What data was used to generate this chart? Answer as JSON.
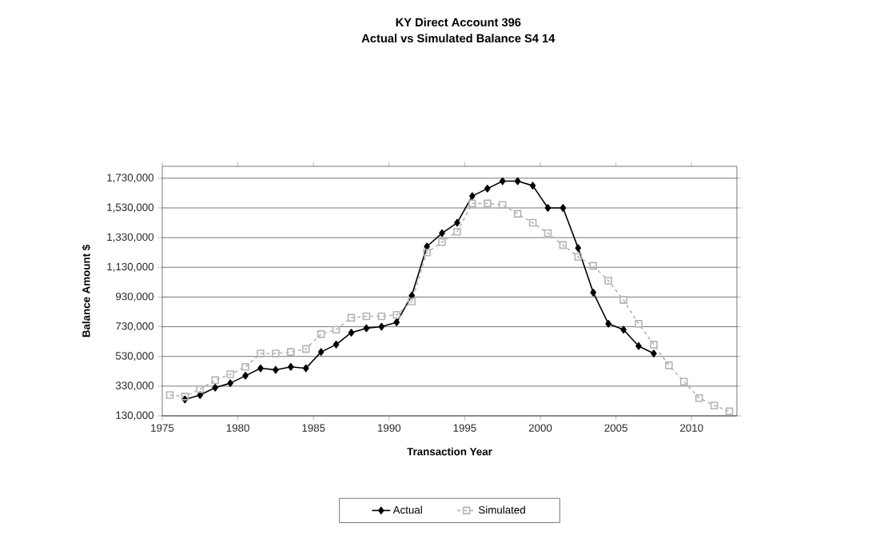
{
  "chart_data": {
    "type": "line",
    "title": "KY Direct Account 396",
    "subtitle": "Actual vs Simulated Balance S4 14",
    "xlabel": "Transaction Year",
    "ylabel": "Balance Amount $",
    "xlim": [
      1975,
      2013
    ],
    "xticks": [
      1975,
      1980,
      1985,
      1990,
      1995,
      2000,
      2005,
      2010
    ],
    "ylim": [
      130000,
      1810000
    ],
    "yticks": [
      {
        "value": 130000,
        "label": "130,000"
      },
      {
        "value": 330000,
        "label": "330,000"
      },
      {
        "value": 530000,
        "label": "530,000"
      },
      {
        "value": 730000,
        "label": "730,000"
      },
      {
        "value": 930000,
        "label": "930,000"
      },
      {
        "value": 1130000,
        "label": "1,130,000"
      },
      {
        "value": 1330000,
        "label": "1,330,000"
      },
      {
        "value": 1530000,
        "label": "1,530,000"
      },
      {
        "value": 1730000,
        "label": "1,730,000"
      }
    ],
    "grid": "y",
    "legend": "bottom",
    "series": [
      {
        "name": "Actual",
        "color": "#000000",
        "marker": "diamond",
        "line_style": "solid",
        "x": [
          1976.5,
          1977.5,
          1978.5,
          1979.5,
          1980.5,
          1981.5,
          1982.5,
          1983.5,
          1984.5,
          1985.5,
          1986.5,
          1987.5,
          1988.5,
          1989.5,
          1990.5,
          1991.5,
          1992.5,
          1993.5,
          1994.5,
          1995.5,
          1996.5,
          1997.5,
          1998.5,
          1999.5,
          2000.5,
          2001.5,
          2002.5,
          2003.5,
          2004.5,
          2005.5,
          2006.5,
          2007.5
        ],
        "values": [
          240000,
          270000,
          320000,
          350000,
          400000,
          450000,
          440000,
          460000,
          450000,
          560000,
          610000,
          690000,
          720000,
          730000,
          760000,
          940000,
          1270000,
          1360000,
          1430000,
          1610000,
          1660000,
          1710000,
          1710000,
          1680000,
          1530000,
          1530000,
          1260000,
          960000,
          750000,
          710000,
          600000,
          550000
        ]
      },
      {
        "name": "Simulated",
        "color": "#b4b4b4",
        "marker": "square",
        "line_style": "dashed",
        "x": [
          1975.5,
          1976.5,
          1977.5,
          1978.5,
          1979.5,
          1980.5,
          1981.5,
          1982.5,
          1983.5,
          1984.5,
          1985.5,
          1986.5,
          1987.5,
          1988.5,
          1989.5,
          1990.5,
          1991.5,
          1992.5,
          1993.5,
          1994.5,
          1995.5,
          1996.5,
          1997.5,
          1998.5,
          1999.5,
          2000.5,
          2001.5,
          2002.5,
          2003.5,
          2004.5,
          2005.5,
          2006.5,
          2007.5,
          2008.5,
          2009.5,
          2010.5,
          2011.5,
          2012.5
        ],
        "values": [
          270000,
          260000,
          310000,
          370000,
          410000,
          460000,
          550000,
          550000,
          560000,
          580000,
          680000,
          710000,
          790000,
          800000,
          800000,
          810000,
          900000,
          1230000,
          1300000,
          1370000,
          1560000,
          1560000,
          1550000,
          1490000,
          1430000,
          1360000,
          1280000,
          1200000,
          1140000,
          1040000,
          910000,
          750000,
          610000,
          470000,
          360000,
          250000,
          200000,
          160000
        ]
      }
    ]
  }
}
